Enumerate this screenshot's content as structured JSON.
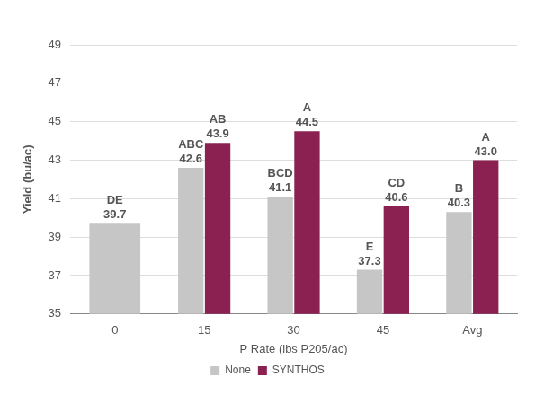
{
  "chart_data": {
    "type": "bar",
    "x_label": "P Rate (lbs P205/ac)",
    "y_label": "Yield (bu/ac)",
    "categories": [
      "0",
      "15",
      "30",
      "45",
      "Avg"
    ],
    "series": [
      {
        "name": "None",
        "color": "#c6c6c6",
        "values": [
          39.7,
          42.6,
          41.1,
          37.3,
          40.3
        ],
        "value_labels": [
          "39.7",
          "42.6",
          "41.1",
          "37.3",
          "40.3"
        ],
        "letters": [
          "DE",
          "ABC",
          "BCD",
          "E",
          "B"
        ]
      },
      {
        "name": "SYNTHOS",
        "color": "#8a2150",
        "values": [
          null,
          43.9,
          44.5,
          40.6,
          43.0
        ],
        "value_labels": [
          null,
          "43.9",
          "44.5",
          "40.6",
          "43.0"
        ],
        "letters": [
          null,
          "AB",
          "A",
          "CD",
          "A"
        ]
      }
    ],
    "ylim": [
      35,
      49
    ],
    "yticks": [
      35,
      37,
      39,
      41,
      43,
      45,
      47,
      49
    ],
    "grid": true,
    "legend": "bottom",
    "data_labels": true
  }
}
